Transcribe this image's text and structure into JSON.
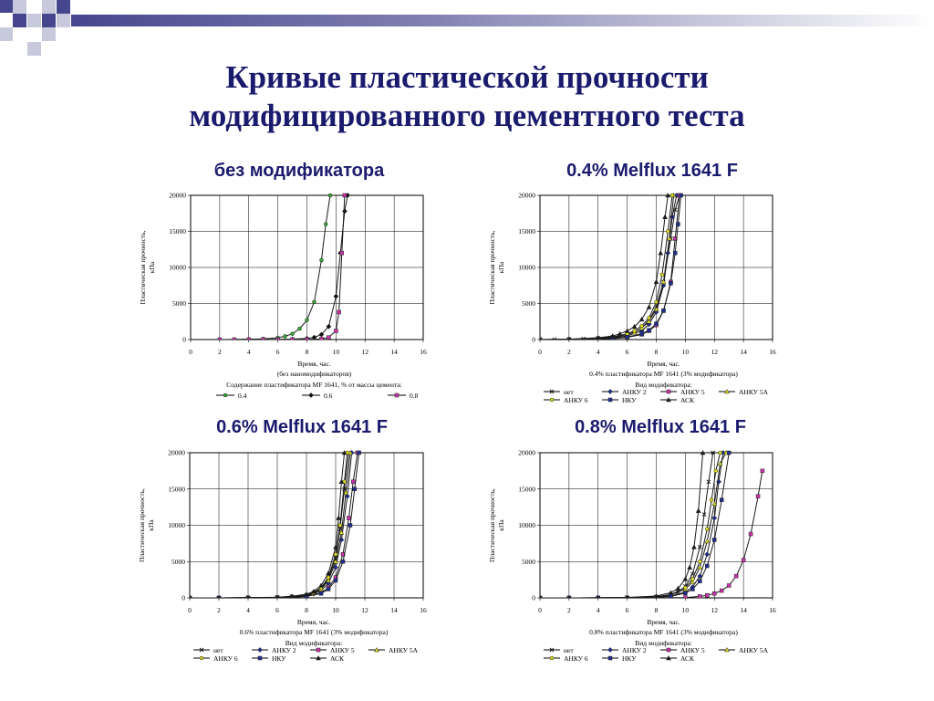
{
  "slide": {
    "title_line1": "Кривые пластической прочности",
    "title_line2": "модифицированного цементного теста",
    "colors": {
      "title": "#1b1b6e",
      "deco_dark": "#46468f",
      "deco_light": "#c9c9dd"
    }
  },
  "chart_data": [
    {
      "type": "line",
      "panel_title": "без модификатора",
      "ylabel_line1": "Пластическая прочность,",
      "ylabel_line2": "кПа",
      "xlabel": "Время, час.",
      "xlabel_sub": "(без наномодификаторов)",
      "legend_title": "Содержание пластификатора MF 1641, % от массы цемента:",
      "xlim": [
        0,
        16
      ],
      "ylim": [
        0,
        20000
      ],
      "x_ticks": [
        "0",
        "2",
        "4",
        "6",
        "8",
        "10",
        "12",
        "14",
        "16"
      ],
      "y_ticks": [
        "0",
        "5000",
        "10000",
        "15000",
        "20000"
      ],
      "grid": true,
      "series": [
        {
          "name": "0.4",
          "color": "#1a1a1a",
          "marker": "circle",
          "fill": "#33aa33",
          "x": [
            2,
            3,
            4,
            5,
            6,
            6.5,
            7,
            7.5,
            8,
            8.5,
            9,
            9.3,
            9.6
          ],
          "y": [
            0,
            20,
            50,
            100,
            250,
            450,
            800,
            1500,
            2700,
            5200,
            11000,
            16000,
            20000
          ]
        },
        {
          "name": "0.6",
          "color": "#1a1a1a",
          "marker": "diamond",
          "fill": "#111111",
          "x": [
            2,
            4,
            6,
            7,
            8,
            8.5,
            9,
            9.5,
            10,
            10.3,
            10.6,
            10.8
          ],
          "y": [
            0,
            10,
            30,
            60,
            150,
            300,
            700,
            1800,
            6000,
            12000,
            17800,
            20000
          ]
        },
        {
          "name": "0.8",
          "color": "#1a1a1a",
          "marker": "square",
          "fill": "#cc33aa",
          "x": [
            2,
            3,
            4,
            5,
            6,
            7,
            8,
            9,
            9.5,
            10,
            10.2,
            10.4,
            10.6
          ],
          "y": [
            0,
            0,
            0,
            0,
            0,
            10,
            20,
            80,
            300,
            1200,
            3800,
            12000,
            20000
          ]
        }
      ]
    },
    {
      "type": "line",
      "panel_title": "0.4% Melflux 1641 F",
      "ylabel_line1": "Пластическая прочность,",
      "ylabel_line2": "кПа",
      "xlabel": "Время, час.",
      "xlabel_sub": "0.4% пластификатора MF 1641 (3% модификатора)",
      "legend_title": "Вид модификатора:",
      "xlim": [
        0,
        16
      ],
      "ylim": [
        0,
        20000
      ],
      "x_ticks": [
        "0",
        "2",
        "4",
        "6",
        "8",
        "10",
        "12",
        "14",
        "16"
      ],
      "y_ticks": [
        "0",
        "5000",
        "10000",
        "15000",
        "20000"
      ],
      "grid": true,
      "series": [
        {
          "name": "нет",
          "color": "#1a1a1a",
          "marker": "x",
          "fill": "#1a1a1a",
          "x": [
            0,
            1,
            2,
            3,
            4,
            5,
            6,
            6.5,
            7,
            7.5,
            8,
            8.5,
            9,
            9.3,
            9.6
          ],
          "y": [
            0,
            0,
            50,
            100,
            200,
            350,
            700,
            1000,
            1600,
            2700,
            4500,
            8000,
            14000,
            18000,
            20000
          ]
        },
        {
          "name": "АНКУ 2",
          "color": "#1a1a1a",
          "marker": "diamond",
          "fill": "#1f2f8f",
          "x": [
            0,
            2,
            4,
            5,
            6,
            7,
            7.5,
            8,
            8.5,
            8.8,
            9.1,
            9.4
          ],
          "y": [
            0,
            20,
            100,
            250,
            500,
            1200,
            2100,
            3800,
            7500,
            12000,
            17000,
            20000
          ]
        },
        {
          "name": "АНКУ 5",
          "color": "#1a1a1a",
          "marker": "square",
          "fill": "#cc33aa",
          "x": [
            0,
            2,
            4,
            5,
            6,
            7,
            7.5,
            8,
            8.5,
            9,
            9.3,
            9.6
          ],
          "y": [
            0,
            10,
            50,
            120,
            300,
            700,
            1200,
            2000,
            4000,
            8000,
            14000,
            20000
          ]
        },
        {
          "name": "АНКУ 5А",
          "color": "#1a1a1a",
          "marker": "triangle",
          "fill": "#dddd22",
          "x": [
            0,
            2,
            4,
            5,
            6,
            6.5,
            7,
            7.5,
            8,
            8.5,
            8.9,
            9.2
          ],
          "y": [
            0,
            30,
            150,
            300,
            700,
            1000,
            1600,
            2500,
            4200,
            8000,
            14000,
            20000
          ]
        },
        {
          "name": "АНКУ 6",
          "color": "#1a1a1a",
          "marker": "circle",
          "fill": "#dddd22",
          "x": [
            0,
            2,
            4,
            5,
            6,
            6.5,
            7,
            7.5,
            8,
            8.4,
            8.8,
            9.1
          ],
          "y": [
            0,
            30,
            180,
            350,
            800,
            1200,
            1900,
            3000,
            5200,
            9000,
            15000,
            20000
          ]
        },
        {
          "name": "НКУ",
          "color": "#1a1a1a",
          "marker": "square",
          "fill": "#1f2f8f",
          "x": [
            0,
            2,
            4,
            5,
            6,
            7,
            7.5,
            8,
            8.5,
            9,
            9.3,
            9.5,
            9.7
          ],
          "y": [
            0,
            10,
            60,
            150,
            350,
            800,
            1300,
            2200,
            4000,
            7800,
            12000,
            16000,
            20000
          ]
        },
        {
          "name": "АСК",
          "color": "#1a1a1a",
          "marker": "triangle",
          "fill": "#1a1a1a",
          "x": [
            0,
            2,
            4,
            5,
            5.5,
            6,
            6.5,
            7,
            7.5,
            8,
            8.3,
            8.6,
            8.8
          ],
          "y": [
            0,
            50,
            250,
            500,
            800,
            1200,
            1800,
            2800,
            4500,
            8000,
            12000,
            17000,
            20000
          ]
        }
      ]
    },
    {
      "type": "line",
      "panel_title": "0.6% Melflux 1641 F",
      "ylabel_line1": "Пластическая прочность,",
      "ylabel_line2": "кПа",
      "xlabel": "Время, час.",
      "xlabel_sub": "0.6% пластификатора MF 1641 (3% модификатора)",
      "legend_title": "Вид модификатора:",
      "xlim": [
        0,
        16
      ],
      "ylim": [
        0,
        20000
      ],
      "x_ticks": [
        "0",
        "2",
        "4",
        "6",
        "8",
        "10",
        "12",
        "14",
        "16"
      ],
      "y_ticks": [
        "0",
        "5000",
        "10000",
        "15000",
        "20000"
      ],
      "grid": true,
      "series": [
        {
          "name": "нет",
          "color": "#1a1a1a",
          "marker": "x",
          "fill": "#1a1a1a",
          "x": [
            0,
            2,
            4,
            6,
            7,
            8,
            8.5,
            9,
            9.5,
            10,
            10.3,
            10.6,
            10.9
          ],
          "y": [
            0,
            0,
            20,
            80,
            180,
            400,
            700,
            1300,
            2600,
            5500,
            9500,
            15000,
            20000
          ]
        },
        {
          "name": "АНКУ 2",
          "color": "#1a1a1a",
          "marker": "diamond",
          "fill": "#1f2f8f",
          "x": [
            0,
            2,
            4,
            6,
            7,
            8,
            8.5,
            9,
            9.5,
            10,
            10.4,
            10.8,
            11.1
          ],
          "y": [
            0,
            0,
            10,
            50,
            120,
            300,
            550,
            1000,
            2000,
            4200,
            8000,
            14000,
            20000
          ]
        },
        {
          "name": "АНКУ 5",
          "color": "#1a1a1a",
          "marker": "square",
          "fill": "#cc33aa",
          "x": [
            0,
            2,
            4,
            6,
            7,
            8,
            9,
            9.5,
            10,
            10.5,
            10.9,
            11.2,
            11.5
          ],
          "y": [
            0,
            0,
            10,
            40,
            90,
            220,
            700,
            1400,
            2800,
            6000,
            11000,
            16000,
            20000
          ]
        },
        {
          "name": "АНКУ 5А",
          "color": "#1a1a1a",
          "marker": "triangle",
          "fill": "#dddd22",
          "x": [
            0,
            2,
            4,
            6,
            7,
            8,
            8.5,
            9,
            9.5,
            10,
            10.4,
            10.7,
            11
          ],
          "y": [
            0,
            0,
            15,
            60,
            150,
            350,
            650,
            1200,
            2400,
            5000,
            9000,
            14500,
            20000
          ]
        },
        {
          "name": "АНКУ 6",
          "color": "#1a1a1a",
          "marker": "circle",
          "fill": "#dddd22",
          "x": [
            0,
            2,
            4,
            6,
            7,
            8,
            8.5,
            9,
            9.5,
            10,
            10.3,
            10.6,
            10.8
          ],
          "y": [
            0,
            0,
            20,
            70,
            170,
            400,
            750,
            1400,
            2800,
            6000,
            10000,
            16000,
            20000
          ]
        },
        {
          "name": "НКУ",
          "color": "#1a1a1a",
          "marker": "square",
          "fill": "#1f2f8f",
          "x": [
            0,
            2,
            4,
            6,
            7,
            8,
            9,
            9.5,
            10,
            10.5,
            11,
            11.3,
            11.6
          ],
          "y": [
            0,
            0,
            10,
            30,
            80,
            200,
            600,
            1200,
            2400,
            5000,
            10000,
            15000,
            20000
          ]
        },
        {
          "name": "АСК",
          "color": "#1a1a1a",
          "marker": "triangle",
          "fill": "#1a1a1a",
          "x": [
            0,
            2,
            4,
            6,
            7,
            8,
            8.5,
            9,
            9.5,
            10,
            10.2,
            10.4,
            10.6
          ],
          "y": [
            0,
            0,
            25,
            100,
            220,
            500,
            900,
            1700,
            3400,
            7000,
            11000,
            16000,
            20000
          ]
        }
      ]
    },
    {
      "type": "line",
      "panel_title": "0.8% Melflux 1641 F",
      "ylabel_line1": "Пластическая прочность,",
      "ylabel_line2": "кПа",
      "xlabel": "Время, час.",
      "xlabel_sub": "0.8% пластификатора MF 1641 (3% модификатора)",
      "legend_title": "Вид модификатора:",
      "xlim": [
        0,
        16
      ],
      "ylim": [
        0,
        20000
      ],
      "x_ticks": [
        "0",
        "2",
        "4",
        "6",
        "8",
        "10",
        "12",
        "14",
        "16"
      ],
      "y_ticks": [
        "0",
        "5000",
        "10000",
        "15000",
        "20000"
      ],
      "grid": true,
      "series": [
        {
          "name": "нет",
          "color": "#1a1a1a",
          "marker": "x",
          "fill": "#1a1a1a",
          "x": [
            0,
            2,
            4,
            6,
            8,
            9,
            9.5,
            10,
            10.5,
            11,
            11.3,
            11.6,
            11.9
          ],
          "y": [
            0,
            0,
            10,
            40,
            150,
            400,
            800,
            1600,
            3300,
            7000,
            11500,
            16000,
            20000
          ]
        },
        {
          "name": "АНКУ 2",
          "color": "#1a1a1a",
          "marker": "diamond",
          "fill": "#1f2f8f",
          "x": [
            0,
            2,
            4,
            6,
            8,
            9,
            10,
            10.5,
            11,
            11.5,
            12,
            12.3,
            12.6
          ],
          "y": [
            0,
            0,
            5,
            20,
            80,
            250,
            800,
            1500,
            3000,
            6000,
            11000,
            16000,
            20000
          ]
        },
        {
          "name": "АНКУ 5",
          "color": "#1a1a1a",
          "marker": "square",
          "fill": "#cc33aa",
          "x": [
            0,
            2,
            4,
            6,
            8,
            10,
            11,
            11.5,
            12,
            12.5,
            13,
            13.5,
            14,
            14.5,
            15,
            15.3
          ],
          "y": [
            0,
            0,
            0,
            0,
            0,
            50,
            200,
            350,
            600,
            1000,
            1700,
            3000,
            5200,
            8800,
            14000,
            17500
          ]
        },
        {
          "name": "АНКУ 5А",
          "color": "#1a1a1a",
          "marker": "triangle",
          "fill": "#dddd22",
          "x": [
            0,
            2,
            4,
            6,
            8,
            9,
            10,
            10.5,
            11,
            11.5,
            12,
            12.4,
            12.8
          ],
          "y": [
            0,
            0,
            10,
            30,
            120,
            400,
            1200,
            2200,
            4200,
            7800,
            13000,
            18500,
            20000
          ]
        },
        {
          "name": "АНКУ 6",
          "color": "#1a1a1a",
          "marker": "circle",
          "fill": "#dddd22",
          "x": [
            0,
            2,
            4,
            6,
            8,
            9,
            10,
            10.5,
            11,
            11.5,
            11.8,
            12.1,
            12.4
          ],
          "y": [
            0,
            0,
            10,
            40,
            150,
            450,
            1400,
            2600,
            5000,
            9500,
            13500,
            17500,
            20000
          ]
        },
        {
          "name": "НКУ",
          "color": "#1a1a1a",
          "marker": "square",
          "fill": "#1f2f8f",
          "x": [
            0,
            2,
            4,
            6,
            8,
            9,
            10,
            10.5,
            11,
            11.5,
            12,
            12.5,
            13
          ],
          "y": [
            0,
            0,
            5,
            15,
            60,
            200,
            650,
            1200,
            2300,
            4400,
            8000,
            13500,
            20000
          ]
        },
        {
          "name": "АСК",
          "color": "#1a1a1a",
          "marker": "triangle",
          "fill": "#1a1a1a",
          "x": [
            0,
            2,
            4,
            6,
            8,
            9,
            9.5,
            10,
            10.3,
            10.6,
            10.9,
            11.2
          ],
          "y": [
            0,
            0,
            15,
            60,
            250,
            700,
            1300,
            2600,
            4200,
            7000,
            12000,
            20000
          ]
        }
      ]
    }
  ]
}
